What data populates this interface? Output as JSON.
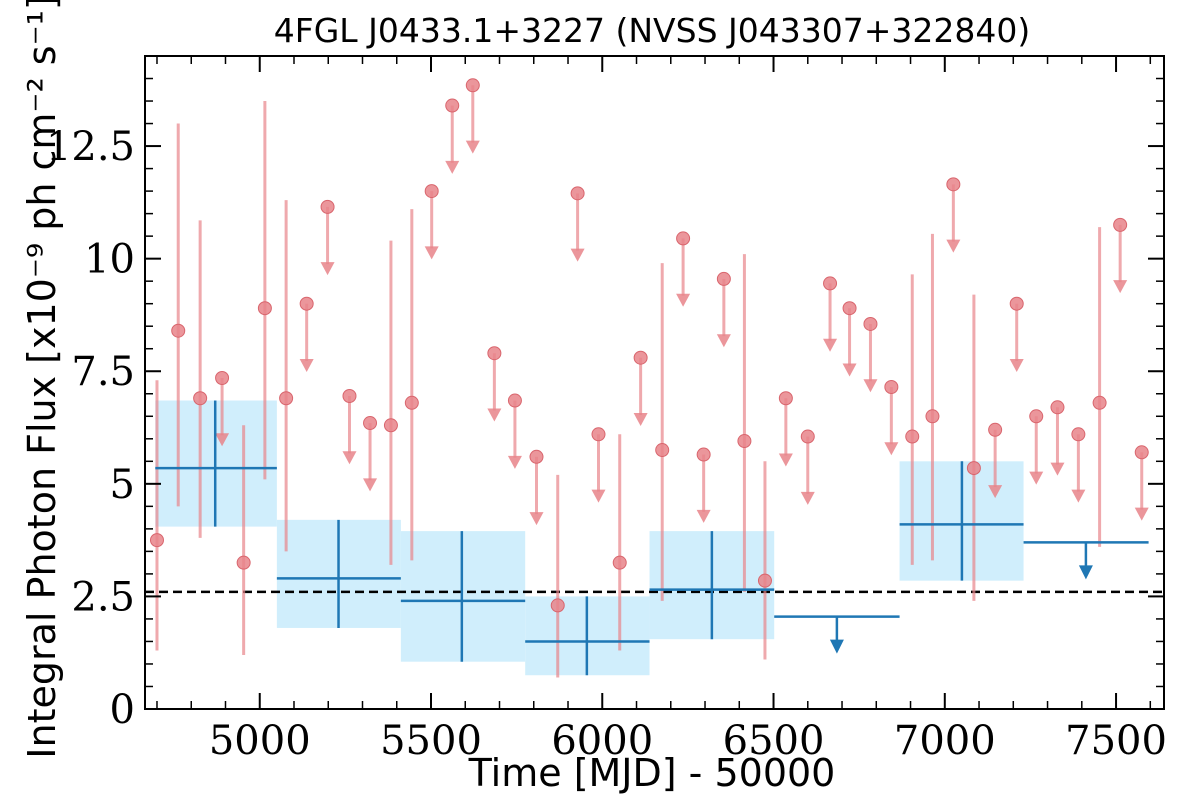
{
  "chart_data": {
    "type": "scatter",
    "title": "4FGL J0433.1+3227 (NVSS J043307+322840)",
    "xlabel": "Time [MJD] - 50000",
    "ylabel": "Integral Photon Flux [x10⁻⁹ ph cm⁻² s⁻¹]",
    "xlim": [
      4665,
      7640
    ],
    "ylim": [
      0,
      14.5
    ],
    "xticks": [
      5000,
      5500,
      6000,
      6500,
      7000,
      7500
    ],
    "xtick_labels": [
      "5000",
      "5500",
      "6000",
      "6500",
      "7000",
      "7500"
    ],
    "yticks": [
      0,
      2.5,
      5,
      7.5,
      10,
      12.5
    ],
    "ytick_labels": [
      "0",
      "2.5",
      "5",
      "7.5",
      "10",
      "12.5"
    ],
    "grid": false,
    "reference_line": {
      "y": 2.6,
      "style": "dashed",
      "color": "#000000"
    },
    "colors": {
      "short_bin": "#e8848a",
      "long_bin": "#1f77b4",
      "long_bin_band": "#d0eefc",
      "axis": "#000000"
    },
    "short_bins_detections": [
      {
        "x": 4700,
        "y": 3.75,
        "yerr_low": 1.3,
        "yerr_high": 7.3
      },
      {
        "x": 4762,
        "y": 8.4,
        "yerr_low": 4.5,
        "yerr_high": 13.0
      },
      {
        "x": 4826,
        "y": 6.9,
        "yerr_low": 3.8,
        "yerr_high": 10.85
      },
      {
        "x": 4953,
        "y": 3.25,
        "yerr_low": 1.2,
        "yerr_high": 6.3
      },
      {
        "x": 5015,
        "y": 8.9,
        "yerr_low": 5.1,
        "yerr_high": 13.5
      },
      {
        "x": 5077,
        "y": 6.9,
        "yerr_low": 3.5,
        "yerr_high": 11.3
      },
      {
        "x": 5383,
        "y": 6.3,
        "yerr_low": 3.2,
        "yerr_high": 10.4
      },
      {
        "x": 5444,
        "y": 6.8,
        "yerr_low": 3.3,
        "yerr_high": 11.1
      },
      {
        "x": 5870,
        "y": 2.3,
        "yerr_low": 0.7,
        "yerr_high": 5.2
      },
      {
        "x": 6051,
        "y": 3.25,
        "yerr_low": 1.3,
        "yerr_high": 6.1
      },
      {
        "x": 6175,
        "y": 5.75,
        "yerr_low": 2.4,
        "yerr_high": 9.9
      },
      {
        "x": 6415,
        "y": 5.95,
        "yerr_low": 2.6,
        "yerr_high": 10.1
      },
      {
        "x": 6475,
        "y": 2.85,
        "yerr_low": 1.1,
        "yerr_high": 5.5
      },
      {
        "x": 6905,
        "y": 6.05,
        "yerr_low": 3.2,
        "yerr_high": 9.65
      },
      {
        "x": 6964,
        "y": 6.5,
        "yerr_low": 3.3,
        "yerr_high": 10.55
      },
      {
        "x": 7085,
        "y": 5.35,
        "yerr_low": 2.4,
        "yerr_high": 9.2
      },
      {
        "x": 7452,
        "y": 6.8,
        "yerr_low": 3.6,
        "yerr_high": 10.7
      }
    ],
    "short_bins_upper_limits": [
      [
        4890,
        7.35
      ],
      [
        5137,
        9.0
      ],
      [
        5198,
        11.15
      ],
      [
        5262,
        6.95
      ],
      [
        5322,
        6.35
      ],
      [
        5502,
        11.5
      ],
      [
        5562,
        13.4
      ],
      [
        5622,
        13.85
      ],
      [
        5685,
        7.9
      ],
      [
        5745,
        6.85
      ],
      [
        5808,
        5.6
      ],
      [
        5928,
        11.45
      ],
      [
        5989,
        6.1
      ],
      [
        6112,
        7.8
      ],
      [
        6236,
        10.45
      ],
      [
        6296,
        5.65
      ],
      [
        6355,
        9.55
      ],
      [
        6536,
        6.9
      ],
      [
        6600,
        6.05
      ],
      [
        6665,
        9.45
      ],
      [
        6722,
        8.9
      ],
      [
        6783,
        8.55
      ],
      [
        6844,
        7.15
      ],
      [
        7025,
        11.65
      ],
      [
        7147,
        6.2
      ],
      [
        7210,
        9.0
      ],
      [
        7267,
        6.5
      ],
      [
        7329,
        6.7
      ],
      [
        7390,
        6.1
      ],
      [
        7512,
        10.75
      ],
      [
        7575,
        5.7
      ]
    ],
    "long_bins_detections": [
      {
        "x": 4870,
        "x_low": 4695,
        "x_high": 5050,
        "y": 5.35,
        "y_low": 4.05,
        "y_high": 6.85,
        "band_low": 4.05,
        "band_high": 6.85
      },
      {
        "x": 5230,
        "x_low": 5050,
        "x_high": 5412,
        "y": 2.9,
        "y_low": 1.8,
        "y_high": 4.2,
        "band_low": 1.8,
        "band_high": 4.2
      },
      {
        "x": 5590,
        "x_low": 5412,
        "x_high": 5775,
        "y": 2.4,
        "y_low": 1.05,
        "y_high": 3.95,
        "band_low": 1.05,
        "band_high": 3.95
      },
      {
        "x": 5955,
        "x_low": 5775,
        "x_high": 6138,
        "y": 1.5,
        "y_low": 0.75,
        "y_high": 2.5,
        "band_low": 0.75,
        "band_high": 2.5
      },
      {
        "x": 6320,
        "x_low": 6138,
        "x_high": 6502,
        "y": 2.65,
        "y_low": 1.55,
        "y_high": 3.95,
        "band_low": 1.55,
        "band_high": 3.95
      },
      {
        "x": 7050,
        "x_low": 6868,
        "x_high": 7230,
        "y": 4.1,
        "y_low": 2.85,
        "y_high": 5.5,
        "band_low": 2.85,
        "band_high": 5.5
      }
    ],
    "long_bins_upper_limits": [
      {
        "x": 6685,
        "x_low": 6502,
        "x_high": 6868,
        "y": 2.05
      },
      {
        "x": 7412,
        "x_low": 7230,
        "x_high": 7595,
        "y": 3.7
      }
    ]
  }
}
